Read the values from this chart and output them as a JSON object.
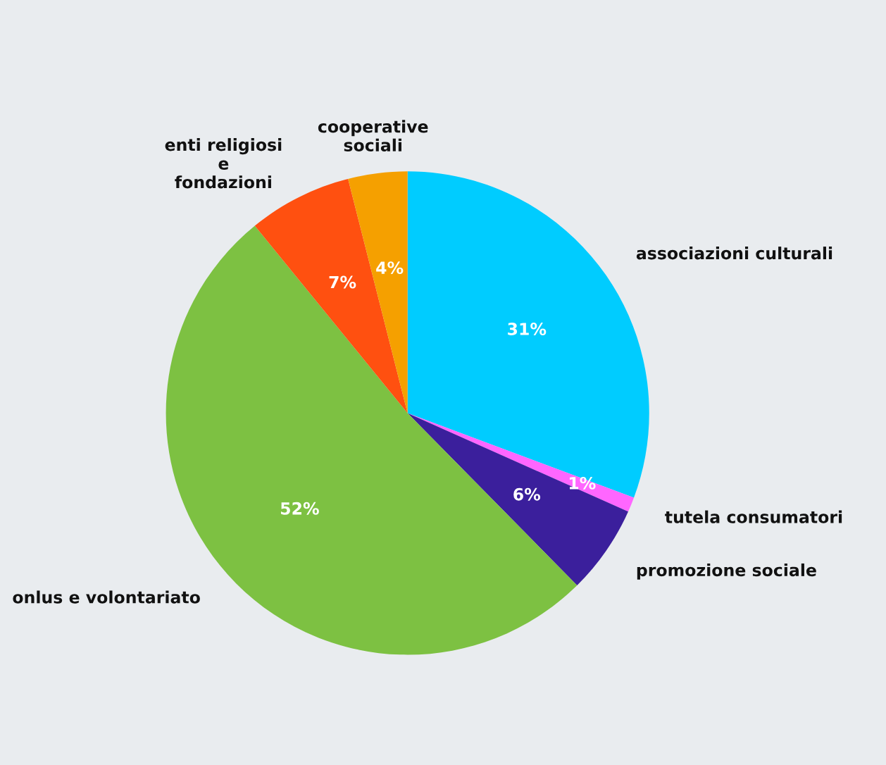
{
  "chart_data": {
    "type": "pie",
    "categories": [
      "associazioni culturali",
      "tutela consumatori",
      "promozione sociale",
      "onlus e volontariato",
      "enti religiosi\ne\nfondazioni",
      "cooperative\nsociali"
    ],
    "values": [
      31,
      1,
      6,
      52,
      7,
      4
    ],
    "colors": [
      "#00ccff",
      "#ff66ff",
      "#3b1f9c",
      "#7dc142",
      "#ff5010",
      "#f5a000"
    ],
    "value_labels": [
      "31%",
      "1%",
      "6%",
      "52%",
      "7%",
      "4%"
    ],
    "legend": false
  }
}
